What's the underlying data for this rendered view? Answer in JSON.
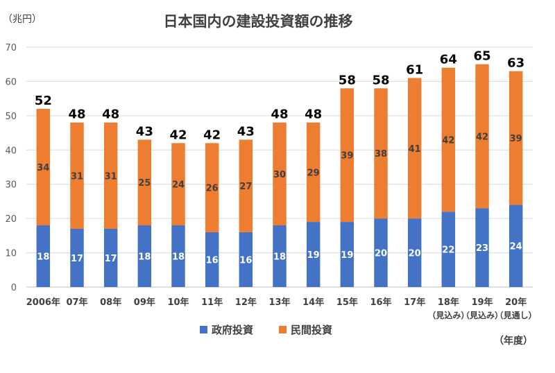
{
  "chart_data": {
    "type": "bar",
    "stacked": true,
    "title": "日本国内の建設投資額の推移",
    "unit_label": "（兆円）",
    "xunit_label": "（年度）",
    "categories": [
      "2006年",
      "07年",
      "08年",
      "09年",
      "10年",
      "11年",
      "12年",
      "13年",
      "14年",
      "15年",
      "16年",
      "17年",
      "18年",
      "19年",
      "20年"
    ],
    "category_notes": [
      "",
      "",
      "",
      "",
      "",
      "",
      "",
      "",
      "",
      "",
      "",
      "",
      "（見込み）",
      "（見込み）",
      "（見通し）"
    ],
    "series": [
      {
        "name": "政府投資",
        "color": "#4472C4",
        "values": [
          18,
          17,
          17,
          18,
          18,
          16,
          16,
          18,
          19,
          19,
          20,
          20,
          22,
          23,
          24
        ]
      },
      {
        "name": "民間投資",
        "color": "#ED7D31",
        "values": [
          34,
          31,
          31,
          25,
          24,
          26,
          27,
          30,
          29,
          39,
          38,
          41,
          42,
          42,
          39
        ]
      }
    ],
    "totals": [
      52,
      48,
      48,
      43,
      42,
      42,
      43,
      48,
      48,
      58,
      58,
      61,
      64,
      65,
      63
    ],
    "ylim": [
      0,
      70
    ],
    "yticks": [
      0,
      10,
      20,
      30,
      40,
      50,
      60,
      70
    ],
    "grid": true,
    "legend_position": "bottom"
  }
}
